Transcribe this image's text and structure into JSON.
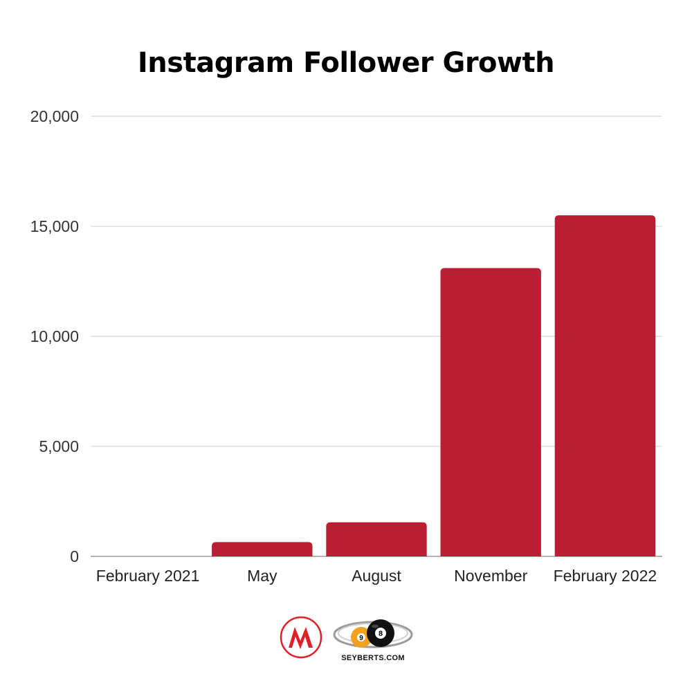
{
  "chart_data": {
    "type": "bar",
    "title": "Instagram Follower Growth",
    "xlabel": "",
    "ylabel": "",
    "categories": [
      "February 2021",
      "May",
      "August",
      "November",
      "February 2022"
    ],
    "values": [
      0,
      650,
      1550,
      13100,
      15500
    ],
    "ylim": [
      0,
      20000
    ],
    "yticks": [
      0,
      5000,
      10000,
      15000,
      20000
    ],
    "ytick_labels": [
      "0",
      "5,000",
      "10,000",
      "15,000",
      "20,000"
    ],
    "grid": true,
    "legend": "none",
    "bar_color": "#BA1E32"
  },
  "footer": {
    "brand_text": "SEYBERTS.COM",
    "logo_m_color": "#E31E26"
  }
}
